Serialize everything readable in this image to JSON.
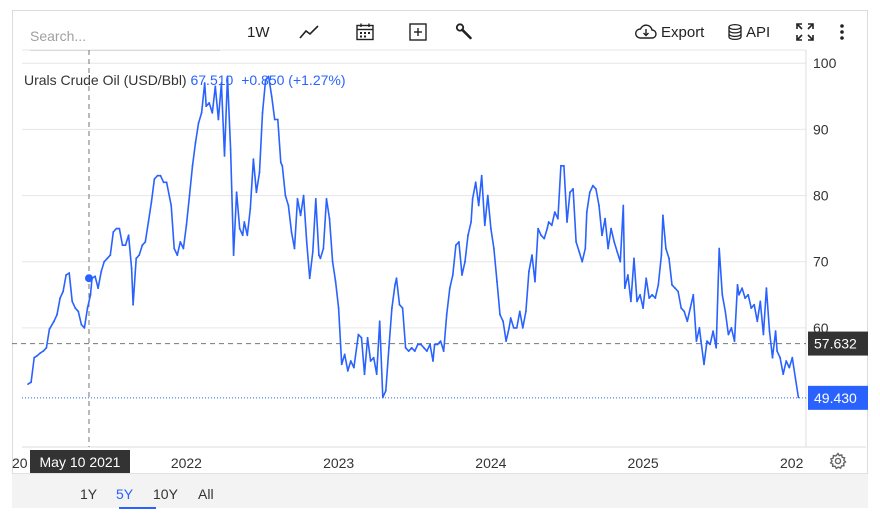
{
  "search": {
    "placeholder": "Search..."
  },
  "toolbar": {
    "interval_label": "1W",
    "export_label": "Export",
    "api_label": "API"
  },
  "legend": {
    "name": "Urals Crude Oil (USD/Bbl)",
    "value": "67.510",
    "change": "+0.850 (+1.27%)"
  },
  "crosshair": {
    "date_label": "May 10 2021",
    "value": 67.51
  },
  "period_tabs": [
    "1Y",
    "5Y",
    "10Y",
    "All"
  ],
  "active_period": "5Y",
  "colors": {
    "line": "#2962ff",
    "last_price_bg": "#2962ff",
    "crosshair_bg": "#333333"
  },
  "chart_data": {
    "type": "line",
    "title": "",
    "xlabel": "",
    "ylabel": "",
    "ylim": [
      42,
      102
    ],
    "yticks": [
      60,
      70,
      80,
      90,
      100
    ],
    "xticks": [
      "2022",
      "2023",
      "2024",
      "2025"
    ],
    "x_edge_labels": {
      "left": "20",
      "right": "202"
    },
    "price_labels": {
      "hover": "57.632",
      "last": "49.430"
    },
    "hover_level": 57.632,
    "last_value": 49.43,
    "series": [
      {
        "values": [
          [
            2020.96,
            51.5
          ],
          [
            2020.98,
            51.8
          ],
          [
            2021.0,
            55.5
          ],
          [
            2021.02,
            55.8
          ],
          [
            2021.04,
            56.2
          ],
          [
            2021.06,
            56.5
          ],
          [
            2021.08,
            57.0
          ],
          [
            2021.1,
            59.8
          ],
          [
            2021.13,
            61.0
          ],
          [
            2021.15,
            62.0
          ],
          [
            2021.17,
            64.5
          ],
          [
            2021.19,
            65.5
          ],
          [
            2021.21,
            68.0
          ],
          [
            2021.23,
            68.3
          ],
          [
            2021.25,
            64.0
          ],
          [
            2021.27,
            63.0
          ],
          [
            2021.29,
            62.5
          ],
          [
            2021.31,
            60.5
          ],
          [
            2021.33,
            60.0
          ],
          [
            2021.35,
            63.0
          ],
          [
            2021.37,
            65.0
          ],
          [
            2021.38,
            67.5
          ],
          [
            2021.4,
            67.8
          ],
          [
            2021.42,
            66.0
          ],
          [
            2021.44,
            68.5
          ],
          [
            2021.46,
            70.0
          ],
          [
            2021.48,
            70.5
          ],
          [
            2021.5,
            71.0
          ],
          [
            2021.52,
            74.5
          ],
          [
            2021.54,
            75.0
          ],
          [
            2021.56,
            75.0
          ],
          [
            2021.58,
            72.5
          ],
          [
            2021.6,
            72.5
          ],
          [
            2021.62,
            74.0
          ],
          [
            2021.64,
            69.0
          ],
          [
            2021.65,
            63.5
          ],
          [
            2021.67,
            70.5
          ],
          [
            2021.69,
            71.0
          ],
          [
            2021.71,
            72.5
          ],
          [
            2021.73,
            73.0
          ],
          [
            2021.75,
            76.0
          ],
          [
            2021.77,
            79.0
          ],
          [
            2021.79,
            82.5
          ],
          [
            2021.81,
            83.0
          ],
          [
            2021.83,
            83.0
          ],
          [
            2021.85,
            82.0
          ],
          [
            2021.87,
            82.0
          ],
          [
            2021.9,
            78.5
          ],
          [
            2021.92,
            72.0
          ],
          [
            2021.94,
            71.0
          ],
          [
            2021.96,
            73.0
          ],
          [
            2021.98,
            72.0
          ],
          [
            2022.0,
            75.5
          ],
          [
            2022.02,
            80.0
          ],
          [
            2022.04,
            84.5
          ],
          [
            2022.06,
            88.0
          ],
          [
            2022.08,
            91.0
          ],
          [
            2022.1,
            92.5
          ],
          [
            2022.12,
            97.0
          ],
          [
            2022.13,
            93.5
          ],
          [
            2022.15,
            94.0
          ],
          [
            2022.17,
            92.5
          ],
          [
            2022.19,
            96.5
          ],
          [
            2022.21,
            91.5
          ],
          [
            2022.23,
            97.0
          ],
          [
            2022.25,
            86.0
          ],
          [
            2022.27,
            98.0
          ],
          [
            2022.29,
            87.0
          ],
          [
            2022.31,
            71.0
          ],
          [
            2022.33,
            80.5
          ],
          [
            2022.35,
            75.0
          ],
          [
            2022.37,
            74.0
          ],
          [
            2022.38,
            76.0
          ],
          [
            2022.4,
            74.0
          ],
          [
            2022.42,
            78.0
          ],
          [
            2022.44,
            85.5
          ],
          [
            2022.46,
            80.5
          ],
          [
            2022.48,
            83.5
          ],
          [
            2022.5,
            92.5
          ],
          [
            2022.52,
            97.5
          ],
          [
            2022.54,
            98.0
          ],
          [
            2022.56,
            95.0
          ],
          [
            2022.58,
            91.5
          ],
          [
            2022.6,
            91.5
          ],
          [
            2022.62,
            85.0
          ],
          [
            2022.63,
            84.5
          ],
          [
            2022.65,
            80.0
          ],
          [
            2022.67,
            78.5
          ],
          [
            2022.69,
            74.5
          ],
          [
            2022.71,
            72.0
          ],
          [
            2022.73,
            79.5
          ],
          [
            2022.75,
            77.0
          ],
          [
            2022.77,
            80.0
          ],
          [
            2022.79,
            73.0
          ],
          [
            2022.81,
            67.5
          ],
          [
            2022.83,
            71.5
          ],
          [
            2022.85,
            79.5
          ],
          [
            2022.87,
            71.0
          ],
          [
            2022.88,
            70.5
          ],
          [
            2022.9,
            72.0
          ],
          [
            2022.92,
            79.5
          ],
          [
            2022.94,
            76.5
          ],
          [
            2022.96,
            70.0
          ],
          [
            2022.98,
            67.0
          ],
          [
            2023.0,
            63.0
          ],
          [
            2023.02,
            54.5
          ],
          [
            2023.04,
            56.0
          ],
          [
            2023.06,
            53.5
          ],
          [
            2023.08,
            55.0
          ],
          [
            2023.1,
            54.0
          ],
          [
            2023.13,
            59.0
          ],
          [
            2023.15,
            58.5
          ],
          [
            2023.17,
            53.0
          ],
          [
            2023.19,
            58.5
          ],
          [
            2023.21,
            55.0
          ],
          [
            2023.23,
            55.5
          ],
          [
            2023.25,
            53.0
          ],
          [
            2023.27,
            61.0
          ],
          [
            2023.29,
            49.5
          ],
          [
            2023.31,
            50.5
          ],
          [
            2023.33,
            57.0
          ],
          [
            2023.35,
            63.0
          ],
          [
            2023.37,
            66.5
          ],
          [
            2023.38,
            67.5
          ],
          [
            2023.4,
            63.5
          ],
          [
            2023.42,
            63.0
          ],
          [
            2023.44,
            57.0
          ],
          [
            2023.46,
            56.5
          ],
          [
            2023.48,
            57.0
          ],
          [
            2023.5,
            56.5
          ],
          [
            2023.52,
            57.5
          ],
          [
            2023.54,
            57.5
          ],
          [
            2023.56,
            57.0
          ],
          [
            2023.58,
            56.5
          ],
          [
            2023.6,
            57.5
          ],
          [
            2023.62,
            55.0
          ],
          [
            2023.63,
            57.5
          ],
          [
            2023.65,
            57.5
          ],
          [
            2023.67,
            58.0
          ],
          [
            2023.69,
            56.5
          ],
          [
            2023.71,
            62.0
          ],
          [
            2023.73,
            66.0
          ],
          [
            2023.75,
            68.0
          ],
          [
            2023.77,
            72.5
          ],
          [
            2023.79,
            73.0
          ],
          [
            2023.81,
            68.0
          ],
          [
            2023.83,
            70.0
          ],
          [
            2023.85,
            74.0
          ],
          [
            2023.87,
            76.0
          ],
          [
            2023.88,
            79.5
          ],
          [
            2023.9,
            82.0
          ],
          [
            2023.92,
            78.5
          ],
          [
            2023.94,
            83.0
          ],
          [
            2023.96,
            75.5
          ],
          [
            2023.98,
            80.0
          ],
          [
            2024.0,
            75.0
          ],
          [
            2024.02,
            72.0
          ],
          [
            2024.04,
            67.0
          ],
          [
            2024.06,
            62.0
          ],
          [
            2024.08,
            61.0
          ],
          [
            2024.1,
            58.0
          ],
          [
            2024.12,
            60.0
          ],
          [
            2024.13,
            61.5
          ],
          [
            2024.15,
            60.0
          ],
          [
            2024.17,
            60.0
          ],
          [
            2024.19,
            62.5
          ],
          [
            2024.21,
            60.0
          ],
          [
            2024.23,
            62.5
          ],
          [
            2024.25,
            68.5
          ],
          [
            2024.27,
            71.0
          ],
          [
            2024.29,
            67.0
          ],
          [
            2024.31,
            75.0
          ],
          [
            2024.33,
            74.0
          ],
          [
            2024.35,
            73.5
          ],
          [
            2024.37,
            75.0
          ],
          [
            2024.38,
            76.0
          ],
          [
            2024.4,
            75.5
          ],
          [
            2024.42,
            77.5
          ],
          [
            2024.44,
            76.5
          ],
          [
            2024.46,
            84.5
          ],
          [
            2024.48,
            84.5
          ],
          [
            2024.5,
            76.0
          ],
          [
            2024.52,
            80.5
          ],
          [
            2024.54,
            81.0
          ],
          [
            2024.56,
            73.0
          ],
          [
            2024.58,
            71.5
          ],
          [
            2024.6,
            70.0
          ],
          [
            2024.62,
            72.0
          ],
          [
            2024.63,
            77.5
          ],
          [
            2024.65,
            80.5
          ],
          [
            2024.67,
            81.5
          ],
          [
            2024.69,
            81.0
          ],
          [
            2024.71,
            78.5
          ],
          [
            2024.73,
            74.0
          ],
          [
            2024.75,
            76.5
          ],
          [
            2024.77,
            72.0
          ],
          [
            2024.79,
            75.0
          ],
          [
            2024.81,
            73.0
          ],
          [
            2024.83,
            71.5
          ],
          [
            2024.85,
            70.0
          ],
          [
            2024.87,
            78.5
          ],
          [
            2024.88,
            66.0
          ],
          [
            2024.9,
            68.0
          ],
          [
            2024.92,
            64.0
          ],
          [
            2024.94,
            70.5
          ],
          [
            2024.96,
            64.0
          ],
          [
            2024.98,
            65.0
          ],
          [
            2025.0,
            63.0
          ],
          [
            2025.02,
            67.5
          ],
          [
            2025.04,
            64.5
          ],
          [
            2025.06,
            65.0
          ],
          [
            2025.08,
            64.5
          ],
          [
            2025.1,
            66.5
          ],
          [
            2025.12,
            71.0
          ],
          [
            2025.13,
            77.0
          ],
          [
            2025.15,
            72.0
          ],
          [
            2025.17,
            70.5
          ],
          [
            2025.19,
            66.5
          ],
          [
            2025.21,
            66.0
          ],
          [
            2025.23,
            65.5
          ],
          [
            2025.25,
            63.0
          ],
          [
            2025.27,
            62.5
          ],
          [
            2025.29,
            61.0
          ],
          [
            2025.31,
            63.0
          ],
          [
            2025.33,
            65.0
          ],
          [
            2025.35,
            58.0
          ],
          [
            2025.37,
            60.0
          ],
          [
            2025.38,
            58.0
          ],
          [
            2025.4,
            54.5
          ],
          [
            2025.42,
            58.0
          ],
          [
            2025.44,
            57.5
          ],
          [
            2025.46,
            59.5
          ],
          [
            2025.48,
            57.0
          ],
          [
            2025.5,
            72.0
          ],
          [
            2025.52,
            65.0
          ],
          [
            2025.54,
            62.5
          ],
          [
            2025.56,
            59.0
          ],
          [
            2025.58,
            60.0
          ],
          [
            2025.6,
            58.0
          ],
          [
            2025.62,
            66.5
          ],
          [
            2025.63,
            65.0
          ],
          [
            2025.65,
            66.0
          ],
          [
            2025.67,
            64.5
          ],
          [
            2025.69,
            65.0
          ],
          [
            2025.71,
            63.0
          ],
          [
            2025.73,
            63.5
          ],
          [
            2025.75,
            61.0
          ],
          [
            2025.77,
            64.0
          ],
          [
            2025.79,
            59.0
          ],
          [
            2025.81,
            66.0
          ],
          [
            2025.83,
            59.5
          ],
          [
            2025.85,
            55.5
          ],
          [
            2025.87,
            59.5
          ],
          [
            2025.88,
            56.5
          ],
          [
            2025.9,
            55.5
          ],
          [
            2025.92,
            53.0
          ],
          [
            2025.94,
            55.0
          ],
          [
            2025.96,
            54.0
          ],
          [
            2025.98,
            55.5
          ],
          [
            2026.0,
            52.5
          ],
          [
            2026.02,
            49.5
          ]
        ]
      }
    ]
  }
}
